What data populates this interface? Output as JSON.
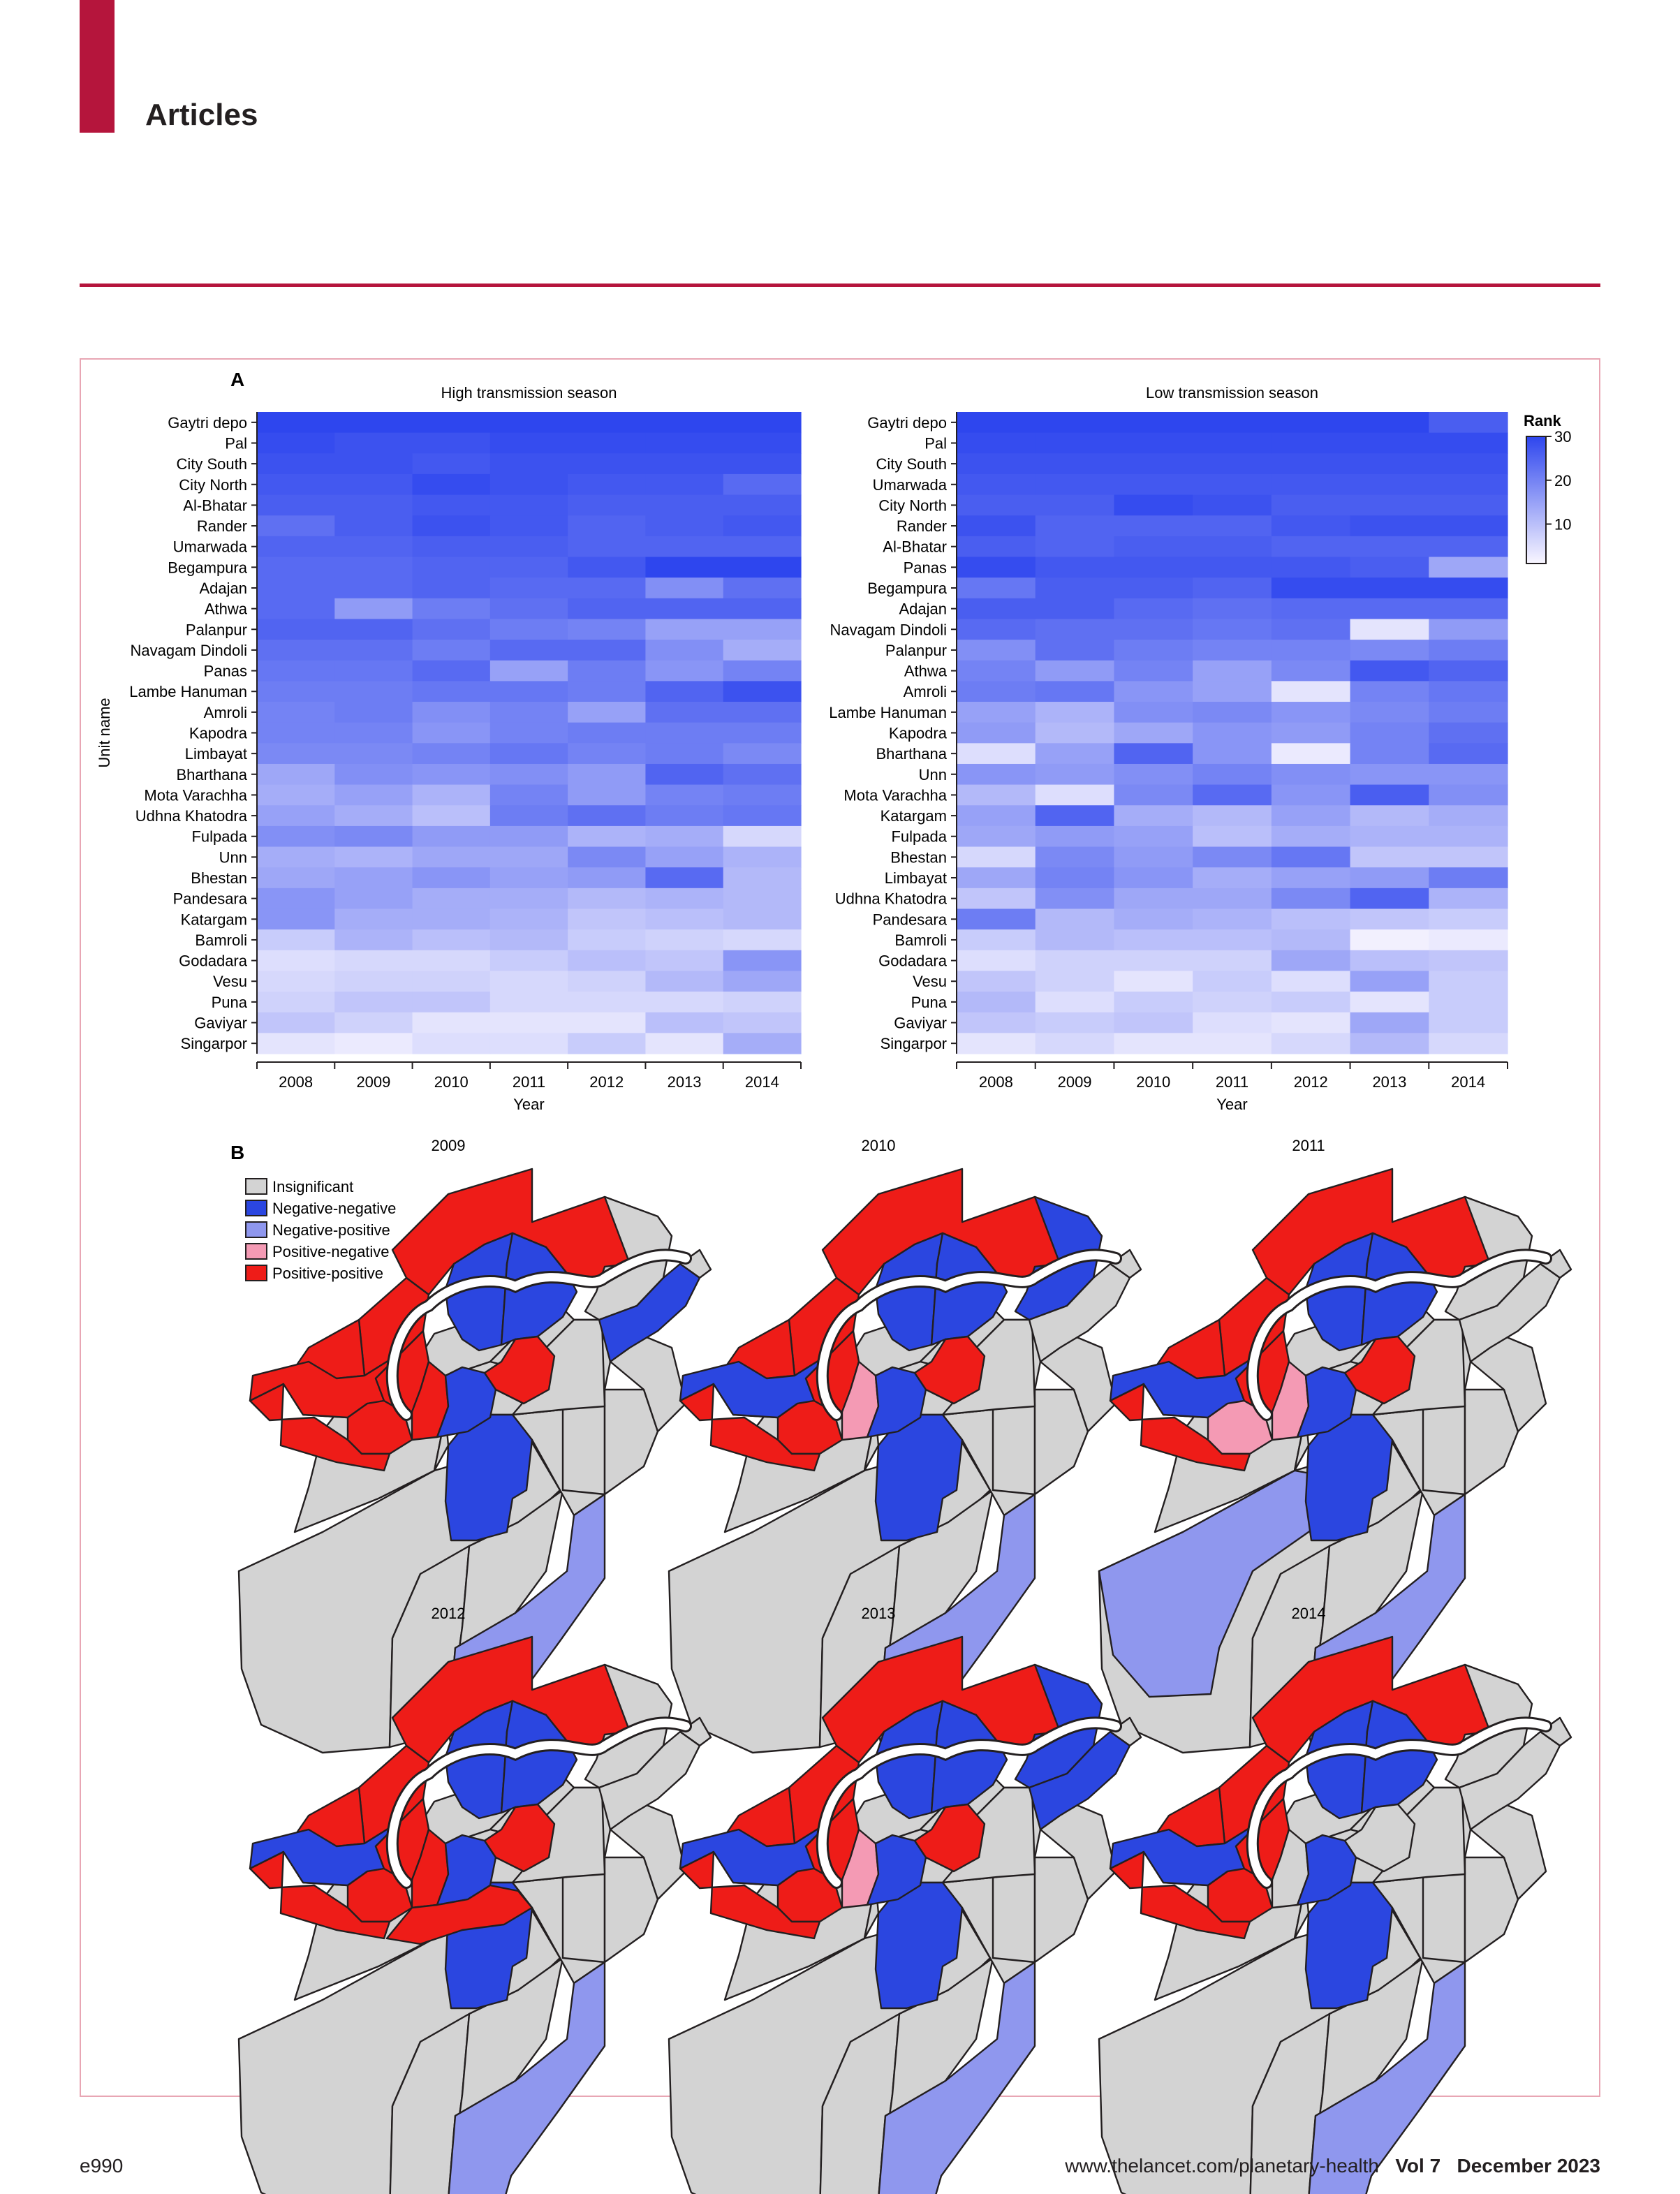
{
  "header": {
    "section": "Articles"
  },
  "footer": {
    "page": "e990",
    "url": "www.thelancet.com/planetary-health",
    "volume": "Vol 7",
    "date": "December 2023"
  },
  "colors": {
    "brand": "#b5153c",
    "insignificant": "#d3d3d3",
    "neg_neg": "#2b46e0",
    "neg_pos": "#8f97ee",
    "pos_neg": "#f49ab4",
    "pos_pos": "#ee1c18"
  },
  "panelA": {
    "label": "A",
    "ylabel": "Unit name",
    "xlabel": "Year",
    "colorbar": {
      "title": "Rank",
      "ticks": [
        "30",
        "20",
        "10"
      ]
    }
  },
  "panelB": {
    "label": "B",
    "legend": [
      "Insignificant",
      "Negative-negative",
      "Negative-positive",
      "Positive-negative",
      "Positive-positive"
    ],
    "maps": [
      {
        "year": "2009",
        "negpos": [
          "outerSW"
        ],
        "posneg": [],
        "negneg": [
          "north2",
          "north3",
          "ne2",
          "center3",
          "south1"
        ],
        "pospos": [
          "north1",
          "nw1",
          "nw2",
          "west1",
          "west2",
          "west3",
          "center1",
          "center2",
          "center4"
        ],
        "extraNeg": []
      },
      {
        "year": "2010",
        "negpos": [
          "outerSW"
        ],
        "posneg": [
          "center2"
        ],
        "negneg": [
          "north2",
          "north3",
          "ne1",
          "center3",
          "south1",
          "west1"
        ],
        "pospos": [
          "north1",
          "nw1",
          "nw2",
          "west2",
          "west3",
          "center1",
          "center4"
        ],
        "extraNeg": []
      },
      {
        "year": "2011",
        "negpos": [
          "outerSW",
          "westBig"
        ],
        "posneg": [
          "center2",
          "west2"
        ],
        "negneg": [
          "north2",
          "north3",
          "center3",
          "south1",
          "west1"
        ],
        "pospos": [
          "north1",
          "nw1",
          "nw2",
          "west3",
          "center1",
          "center4"
        ],
        "extraNeg": []
      },
      {
        "year": "2012",
        "negpos": [
          "outerSW"
        ],
        "posneg": [],
        "negneg": [
          "north2",
          "north3",
          "center3",
          "south1",
          "west1"
        ],
        "pospos": [
          "north1",
          "nw1",
          "nw2",
          "west2",
          "west3",
          "center1",
          "center2",
          "center4",
          "river"
        ],
        "extraNeg": []
      },
      {
        "year": "2013",
        "negpos": [
          "outerSW"
        ],
        "posneg": [
          "center2"
        ],
        "negneg": [
          "north2",
          "north3",
          "ne1",
          "ne2",
          "center3",
          "south1",
          "west1"
        ],
        "pospos": [
          "north1",
          "nw1",
          "nw2",
          "west2",
          "west3",
          "center1",
          "center4"
        ],
        "extraNeg": []
      },
      {
        "year": "2014",
        "negpos": [
          "outerSW"
        ],
        "posneg": [],
        "negneg": [
          "north2",
          "north3",
          "center3",
          "south1",
          "west1"
        ],
        "pospos": [
          "north1",
          "nw1",
          "nw2",
          "west2",
          "west3",
          "center1"
        ],
        "extraNeg": []
      }
    ]
  },
  "chart_data": [
    {
      "type": "heatmap",
      "title": "High transmission season",
      "xlabel": "Year",
      "ylabel": "Unit name",
      "colorbar": "Rank",
      "zlim": [
        1,
        30
      ],
      "x": [
        "2008",
        "2009",
        "2010",
        "2011",
        "2012",
        "2013",
        "2014"
      ],
      "y": [
        "Gaytri depo",
        "Pal",
        "City South",
        "City North",
        "Al-Bhatar",
        "Rander",
        "Umarwada",
        "Begampura",
        "Adajan",
        "Athwa",
        "Palanpur",
        "Navagam Dindoli",
        "Panas",
        "Lambe Hanuman",
        "Amroli",
        "Kapodra",
        "Limbayat",
        "Bharthana",
        "Mota Varachha",
        "Udhna Khatodra",
        "Fulpada",
        "Unn",
        "Bhestan",
        "Pandesara",
        "Katargam",
        "Bamroli",
        "Godadara",
        "Vesu",
        "Puna",
        "Gaviyar",
        "Singarpor"
      ],
      "values": [
        [
          30,
          30,
          30,
          30,
          30,
          30,
          30
        ],
        [
          29,
          28,
          28,
          29,
          29,
          29,
          29
        ],
        [
          28,
          28,
          27,
          28,
          28,
          28,
          28
        ],
        [
          27,
          27,
          29,
          28,
          27,
          27,
          24
        ],
        [
          26,
          26,
          27,
          27,
          26,
          26,
          26
        ],
        [
          23,
          26,
          28,
          27,
          25,
          26,
          27
        ],
        [
          25,
          25,
          26,
          26,
          25,
          25,
          25
        ],
        [
          24,
          24,
          25,
          25,
          27,
          30,
          30
        ],
        [
          24,
          24,
          25,
          24,
          24,
          18,
          23
        ],
        [
          24,
          16,
          21,
          23,
          25,
          25,
          25
        ],
        [
          25,
          25,
          23,
          21,
          20,
          15,
          15
        ],
        [
          23,
          23,
          21,
          24,
          24,
          18,
          13
        ],
        [
          22,
          22,
          24,
          15,
          21,
          17,
          20
        ],
        [
          21,
          21,
          22,
          22,
          21,
          25,
          28
        ],
        [
          20,
          21,
          18,
          20,
          15,
          23,
          23
        ],
        [
          20,
          20,
          17,
          20,
          21,
          21,
          21
        ],
        [
          19,
          19,
          20,
          22,
          20,
          21,
          19
        ],
        [
          14,
          18,
          17,
          18,
          16,
          25,
          23
        ],
        [
          13,
          15,
          12,
          20,
          16,
          20,
          21
        ],
        [
          15,
          13,
          10,
          21,
          23,
          21,
          22
        ],
        [
          18,
          19,
          16,
          16,
          12,
          13,
          6
        ],
        [
          13,
          12,
          14,
          14,
          19,
          15,
          12
        ],
        [
          14,
          15,
          17,
          15,
          16,
          24,
          11
        ],
        [
          17,
          15,
          13,
          13,
          11,
          12,
          11
        ],
        [
          17,
          13,
          13,
          12,
          9,
          10,
          11
        ],
        [
          8,
          12,
          10,
          11,
          8,
          7,
          6
        ],
        [
          5,
          6,
          6,
          8,
          10,
          9,
          17
        ],
        [
          6,
          7,
          7,
          6,
          7,
          11,
          14
        ],
        [
          7,
          9,
          9,
          6,
          6,
          6,
          7
        ],
        [
          9,
          7,
          4,
          4,
          4,
          10,
          9
        ],
        [
          4,
          3,
          5,
          5,
          8,
          4,
          13
        ]
      ]
    },
    {
      "type": "heatmap",
      "title": "Low transmission season",
      "xlabel": "Year",
      "ylabel": "Unit name",
      "colorbar": "Rank",
      "zlim": [
        1,
        30
      ],
      "x": [
        "2008",
        "2009",
        "2010",
        "2011",
        "2012",
        "2013",
        "2014"
      ],
      "y": [
        "Gaytri depo",
        "Pal",
        "City South",
        "Umarwada",
        "City North",
        "Rander",
        "Al-Bhatar",
        "Panas",
        "Begampura",
        "Adajan",
        "Navagam Dindoli",
        "Palanpur",
        "Athwa",
        "Amroli",
        "Lambe Hanuman",
        "Kapodra",
        "Bharthana",
        "Unn",
        "Mota Varachha",
        "Katargam",
        "Fulpada",
        "Bhestan",
        "Limbayat",
        "Udhna Khatodra",
        "Pandesara",
        "Bamroli",
        "Godadara",
        "Vesu",
        "Puna",
        "Gaviyar",
        "Singarpor"
      ],
      "values": [
        [
          30,
          30,
          30,
          30,
          30,
          30,
          26
        ],
        [
          29,
          29,
          29,
          29,
          29,
          29,
          29
        ],
        [
          28,
          28,
          28,
          28,
          28,
          28,
          28
        ],
        [
          27,
          27,
          27,
          27,
          27,
          27,
          27
        ],
        [
          26,
          26,
          29,
          28,
          26,
          26,
          26
        ],
        [
          28,
          25,
          25,
          25,
          27,
          28,
          28
        ],
        [
          26,
          25,
          26,
          26,
          25,
          25,
          25
        ],
        [
          29,
          27,
          27,
          27,
          27,
          26,
          14
        ],
        [
          22,
          26,
          26,
          25,
          29,
          29,
          29
        ],
        [
          26,
          26,
          24,
          23,
          24,
          24,
          24
        ],
        [
          24,
          23,
          23,
          22,
          23,
          4,
          16
        ],
        [
          18,
          23,
          21,
          20,
          20,
          19,
          21
        ],
        [
          20,
          16,
          20,
          15,
          19,
          27,
          25
        ],
        [
          21,
          22,
          17,
          15,
          4,
          20,
          22
        ],
        [
          15,
          12,
          18,
          19,
          17,
          19,
          21
        ],
        [
          16,
          11,
          14,
          17,
          16,
          20,
          23
        ],
        [
          5,
          15,
          25,
          17,
          3,
          20,
          24
        ],
        [
          17,
          16,
          18,
          20,
          18,
          17,
          17
        ],
        [
          11,
          5,
          19,
          24,
          17,
          26,
          18
        ],
        [
          15,
          25,
          13,
          11,
          15,
          11,
          13
        ],
        [
          14,
          16,
          15,
          10,
          13,
          12,
          12
        ],
        [
          6,
          19,
          16,
          19,
          22,
          9,
          9
        ],
        [
          14,
          20,
          17,
          13,
          15,
          16,
          21
        ],
        [
          9,
          18,
          14,
          14,
          19,
          25,
          12
        ],
        [
          21,
          11,
          13,
          12,
          10,
          9,
          8
        ],
        [
          8,
          11,
          10,
          10,
          11,
          2,
          3
        ],
        [
          5,
          7,
          7,
          7,
          14,
          10,
          9
        ],
        [
          9,
          7,
          4,
          8,
          5,
          15,
          8
        ],
        [
          11,
          5,
          8,
          7,
          8,
          4,
          8
        ],
        [
          9,
          8,
          9,
          5,
          4,
          14,
          8
        ],
        [
          4,
          6,
          4,
          4,
          6,
          11,
          6
        ]
      ]
    }
  ]
}
